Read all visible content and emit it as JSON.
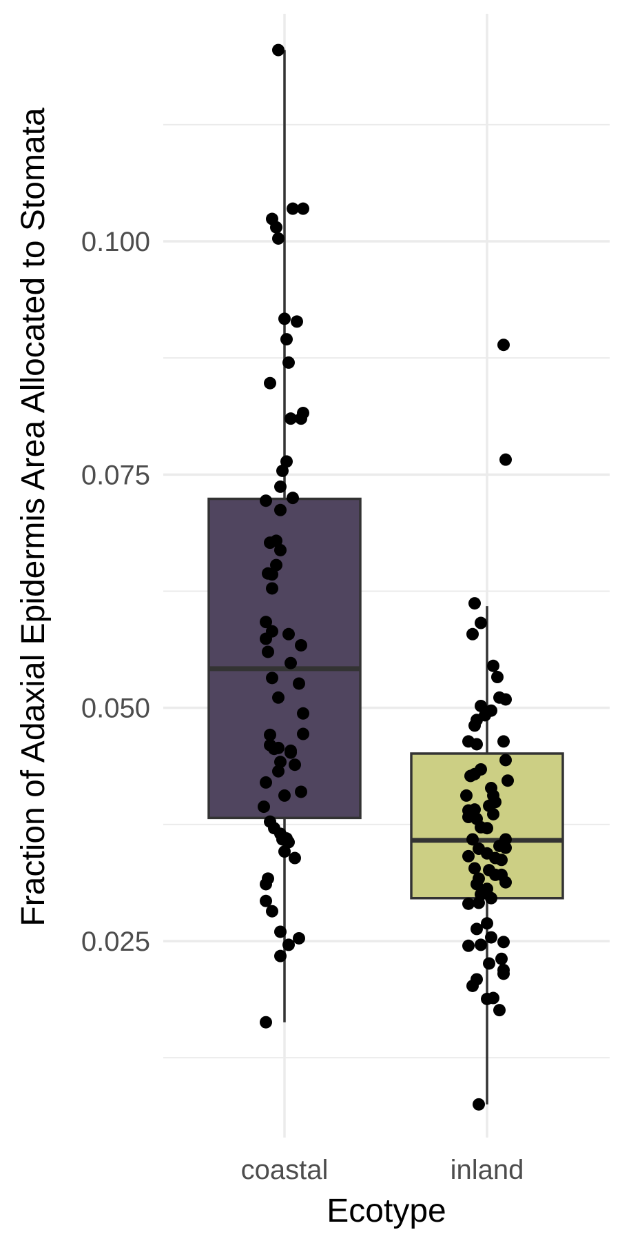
{
  "chart_data": {
    "type": "boxplot",
    "title": "",
    "xlabel": "Ecotype",
    "ylabel": "Fraction of Adaxial Epidermis Area Allocated to Stomata",
    "ylim": [
      0.0055,
      0.127
    ],
    "y_ticks": [
      "0.025",
      "0.050",
      "0.075",
      "0.100"
    ],
    "y_tick_values": [
      0.025,
      0.05,
      0.075,
      0.1
    ],
    "y_minor_gridlines": [
      0.0125,
      0.0375,
      0.0625,
      0.0875,
      0.1125
    ],
    "grid": true,
    "legend": "none",
    "categories": [
      "coastal",
      "inland"
    ],
    "series": [
      {
        "category": "coastal",
        "fill": "#50455f",
        "stats": {
          "lower_whisker": 0.0163,
          "q1": 0.0382,
          "median": 0.0542,
          "q3": 0.0724,
          "upper_whisker": 0.1205
        },
        "points": [
          {
            "x": -0.03,
            "y": 0.1205
          },
          {
            "x": -0.06,
            "y": 0.1024
          },
          {
            "x": -0.04,
            "y": 0.1015
          },
          {
            "x": -0.03,
            "y": 0.1003
          },
          {
            "x": 0.04,
            "y": 0.1035
          },
          {
            "x": 0.09,
            "y": 0.1035
          },
          {
            "x": 0.0,
            "y": 0.0917
          },
          {
            "x": 0.06,
            "y": 0.0914
          },
          {
            "x": 0.01,
            "y": 0.0895
          },
          {
            "x": 0.02,
            "y": 0.087
          },
          {
            "x": -0.07,
            "y": 0.0848
          },
          {
            "x": 0.09,
            "y": 0.0816
          },
          {
            "x": 0.08,
            "y": 0.081
          },
          {
            "x": 0.03,
            "y": 0.081
          },
          {
            "x": 0.01,
            "y": 0.0764
          },
          {
            "x": -0.01,
            "y": 0.0754
          },
          {
            "x": -0.02,
            "y": 0.0737
          },
          {
            "x": -0.09,
            "y": 0.0722
          },
          {
            "x": 0.04,
            "y": 0.0725
          },
          {
            "x": -0.02,
            "y": 0.0712
          },
          {
            "x": -0.07,
            "y": 0.0677
          },
          {
            "x": -0.04,
            "y": 0.0679
          },
          {
            "x": -0.02,
            "y": 0.0669
          },
          {
            "x": -0.04,
            "y": 0.0653
          },
          {
            "x": -0.08,
            "y": 0.0644
          },
          {
            "x": -0.06,
            "y": 0.0643
          },
          {
            "x": -0.06,
            "y": 0.0628
          },
          {
            "x": -0.09,
            "y": 0.0592
          },
          {
            "x": -0.06,
            "y": 0.0582
          },
          {
            "x": 0.02,
            "y": 0.0579
          },
          {
            "x": -0.09,
            "y": 0.0574
          },
          {
            "x": 0.08,
            "y": 0.0567
          },
          {
            "x": -0.08,
            "y": 0.056
          },
          {
            "x": 0.03,
            "y": 0.0548
          },
          {
            "x": -0.06,
            "y": 0.0532
          },
          {
            "x": 0.07,
            "y": 0.0526
          },
          {
            "x": -0.03,
            "y": 0.0511
          },
          {
            "x": 0.09,
            "y": 0.0494
          },
          {
            "x": -0.07,
            "y": 0.0471
          },
          {
            "x": 0.09,
            "y": 0.0472
          },
          {
            "x": -0.07,
            "y": 0.046
          },
          {
            "x": -0.03,
            "y": 0.0457
          },
          {
            "x": -0.05,
            "y": 0.0456
          },
          {
            "x": 0.03,
            "y": 0.0454
          },
          {
            "x": 0.03,
            "y": 0.0452
          },
          {
            "x": -0.02,
            "y": 0.0442
          },
          {
            "x": 0.05,
            "y": 0.0439
          },
          {
            "x": -0.03,
            "y": 0.0432
          },
          {
            "x": -0.09,
            "y": 0.042
          },
          {
            "x": 0.08,
            "y": 0.041
          },
          {
            "x": 0.0,
            "y": 0.0406
          },
          {
            "x": -0.1,
            "y": 0.0394
          },
          {
            "x": -0.07,
            "y": 0.0378
          },
          {
            "x": -0.05,
            "y": 0.0371
          },
          {
            "x": -0.02,
            "y": 0.0365
          },
          {
            "x": -0.01,
            "y": 0.0359
          },
          {
            "x": 0.01,
            "y": 0.036
          },
          {
            "x": 0.02,
            "y": 0.0356
          },
          {
            "x": 0.0,
            "y": 0.0346
          },
          {
            "x": 0.05,
            "y": 0.0339
          },
          {
            "x": -0.08,
            "y": 0.0317
          },
          {
            "x": -0.09,
            "y": 0.0311
          },
          {
            "x": -0.09,
            "y": 0.0293
          },
          {
            "x": -0.06,
            "y": 0.0282
          },
          {
            "x": -0.02,
            "y": 0.026
          },
          {
            "x": 0.07,
            "y": 0.0253
          },
          {
            "x": 0.02,
            "y": 0.0246
          },
          {
            "x": -0.02,
            "y": 0.0234
          },
          {
            "x": -0.09,
            "y": 0.0163
          }
        ]
      },
      {
        "category": "inland",
        "fill": "#cccf84",
        "stats": {
          "lower_whisker": 0.0075,
          "q1": 0.0296,
          "median": 0.0358,
          "q3": 0.0451,
          "upper_whisker": 0.0609
        },
        "points": [
          {
            "x": 0.08,
            "y": 0.0889
          },
          {
            "x": 0.09,
            "y": 0.0766
          },
          {
            "x": -0.06,
            "y": 0.0612
          },
          {
            "x": -0.03,
            "y": 0.0591
          },
          {
            "x": -0.07,
            "y": 0.0579
          },
          {
            "x": 0.03,
            "y": 0.0545
          },
          {
            "x": 0.05,
            "y": 0.0533
          },
          {
            "x": 0.06,
            "y": 0.0511
          },
          {
            "x": 0.09,
            "y": 0.0509
          },
          {
            "x": -0.03,
            "y": 0.0502
          },
          {
            "x": 0.02,
            "y": 0.0497
          },
          {
            "x": -0.01,
            "y": 0.0492
          },
          {
            "x": -0.05,
            "y": 0.0487
          },
          {
            "x": -0.06,
            "y": 0.0481
          },
          {
            "x": -0.09,
            "y": 0.0464
          },
          {
            "x": -0.05,
            "y": 0.0461
          },
          {
            "x": 0.08,
            "y": 0.0464
          },
          {
            "x": 0.09,
            "y": 0.0444
          },
          {
            "x": -0.03,
            "y": 0.0434
          },
          {
            "x": -0.06,
            "y": 0.0429
          },
          {
            "x": -0.08,
            "y": 0.0427
          },
          {
            "x": 0.1,
            "y": 0.0422
          },
          {
            "x": 0.02,
            "y": 0.0414
          },
          {
            "x": -0.1,
            "y": 0.0406
          },
          {
            "x": 0.03,
            "y": 0.0406
          },
          {
            "x": 0.01,
            "y": 0.0395
          },
          {
            "x": 0.04,
            "y": 0.0399
          },
          {
            "x": -0.09,
            "y": 0.039
          },
          {
            "x": -0.06,
            "y": 0.0391
          },
          {
            "x": -0.09,
            "y": 0.0383
          },
          {
            "x": -0.05,
            "y": 0.0381
          },
          {
            "x": 0.03,
            "y": 0.0386
          },
          {
            "x": -0.03,
            "y": 0.0372
          },
          {
            "x": 0.0,
            "y": 0.0371
          },
          {
            "x": 0.09,
            "y": 0.0359
          },
          {
            "x": -0.07,
            "y": 0.0359
          },
          {
            "x": 0.06,
            "y": 0.0352
          },
          {
            "x": 0.09,
            "y": 0.035
          },
          {
            "x": -0.04,
            "y": 0.0349
          },
          {
            "x": 0.0,
            "y": 0.0344
          },
          {
            "x": -0.09,
            "y": 0.0341
          },
          {
            "x": 0.04,
            "y": 0.0339
          },
          {
            "x": 0.07,
            "y": 0.0337
          },
          {
            "x": -0.06,
            "y": 0.0328
          },
          {
            "x": 0.01,
            "y": 0.0326
          },
          {
            "x": 0.04,
            "y": 0.0321
          },
          {
            "x": 0.07,
            "y": 0.0321
          },
          {
            "x": -0.04,
            "y": 0.0317
          },
          {
            "x": -0.05,
            "y": 0.0311
          },
          {
            "x": 0.09,
            "y": 0.0313
          },
          {
            "x": 0.0,
            "y": 0.0306
          },
          {
            "x": -0.03,
            "y": 0.03
          },
          {
            "x": 0.02,
            "y": 0.0296
          },
          {
            "x": -0.04,
            "y": 0.0291
          },
          {
            "x": -0.09,
            "y": 0.029
          },
          {
            "x": 0.0,
            "y": 0.0269
          },
          {
            "x": -0.05,
            "y": 0.0263
          },
          {
            "x": 0.02,
            "y": 0.0254
          },
          {
            "x": 0.08,
            "y": 0.0249
          },
          {
            "x": -0.09,
            "y": 0.0245
          },
          {
            "x": -0.03,
            "y": 0.0246
          },
          {
            "x": 0.07,
            "y": 0.0231
          },
          {
            "x": 0.01,
            "y": 0.0226
          },
          {
            "x": 0.08,
            "y": 0.0219
          },
          {
            "x": 0.08,
            "y": 0.0215
          },
          {
            "x": -0.05,
            "y": 0.0209
          },
          {
            "x": -0.07,
            "y": 0.0202
          },
          {
            "x": 0.03,
            "y": 0.0189
          },
          {
            "x": 0.0,
            "y": 0.0188
          },
          {
            "x": 0.06,
            "y": 0.0176
          },
          {
            "x": -0.04,
            "y": 0.0075
          }
        ]
      }
    ]
  },
  "colors": {
    "background": "#ffffff",
    "gridline": "#ebebeb",
    "box_outline": "#333333",
    "point": "#000000",
    "tick_label": "#4d4d4d",
    "axis_title": "#000000"
  }
}
